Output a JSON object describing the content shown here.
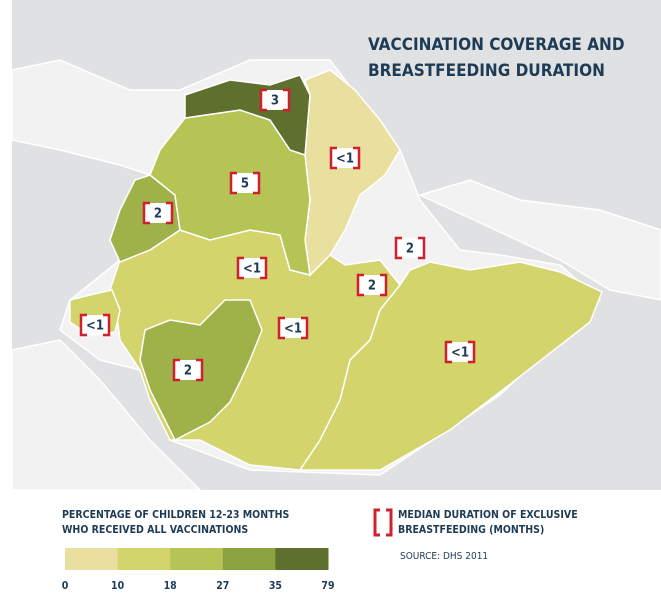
{
  "title": [
    "VACCINATION COVERAGE AND",
    "BREASTFEEDING DURATION"
  ],
  "regions": [
    {
      "label": "<1",
      "color": "#d3d46c"
    },
    {
      "label": "<1",
      "color": "#d3d46c"
    },
    {
      "label": "<1",
      "color": "#d3d46c"
    },
    {
      "label": "2",
      "color": "#9fb24a"
    },
    {
      "label": "2",
      "color": "#9fb24a"
    },
    {
      "label": "<1",
      "color": "#e9df9e"
    },
    {
      "label": "5",
      "color": "#b5c455"
    },
    {
      "label": "3",
      "color": "#5e6f2e"
    },
    {
      "label": "2",
      "color": "#d3d46c"
    },
    {
      "label": "2",
      "color": "#d3d46c"
    },
    {
      "label": "<1",
      "color": "#d3d46c"
    }
  ],
  "legend": {
    "title": [
      "PERCENTAGE OF CHILDREN 12-23 MONTHS",
      "WHO RECEIVED ALL VACCINATIONS"
    ],
    "ticks": [
      0,
      10,
      18,
      27,
      35,
      79
    ],
    "colors": [
      "#e9df9e",
      "#d3d46c",
      "#b5c455",
      "#8ca13f",
      "#5e6f2e"
    ]
  },
  "bracket_legend": [
    "MEDIAN DURATION OF EXCLUSIVE",
    "BREASTFEEDING (MONTHS)"
  ],
  "source": "SOURCE: DHS 2011"
}
